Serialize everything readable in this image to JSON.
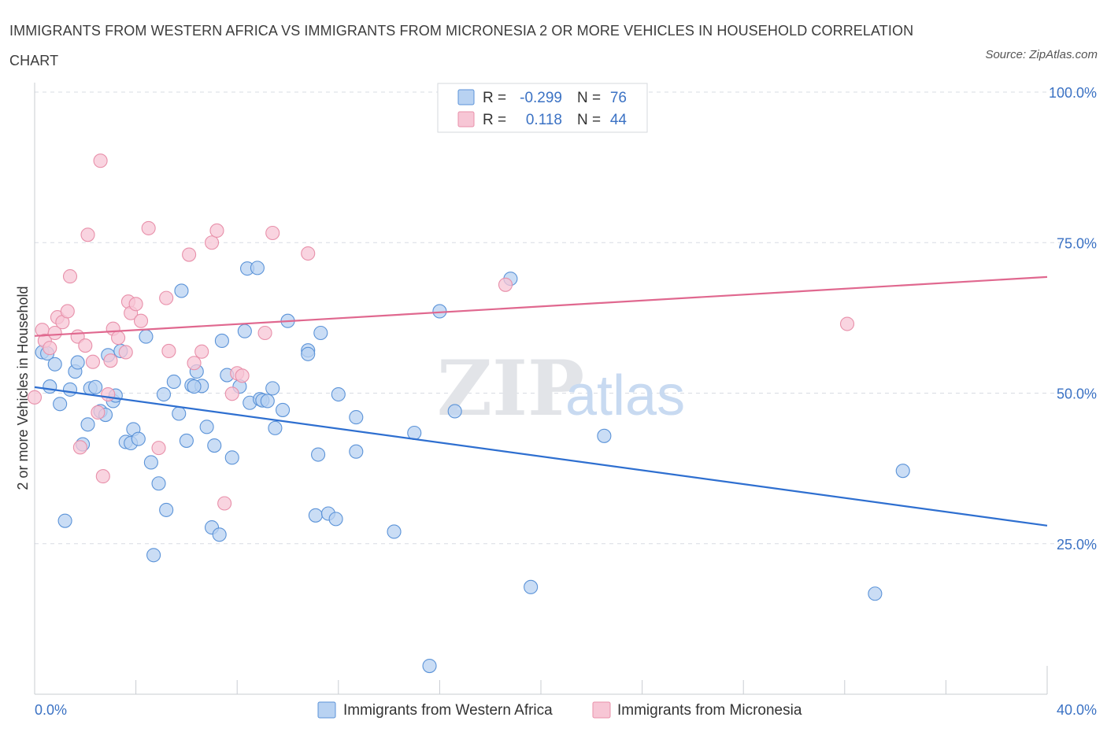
{
  "title": "IMMIGRANTS FROM WESTERN AFRICA VS IMMIGRANTS FROM MICRONESIA 2 OR MORE VEHICLES IN HOUSEHOLD CORRELATION CHART",
  "source": "Source: ZipAtlas.com",
  "watermark": {
    "zip": "ZIP",
    "atlas": "atlas"
  },
  "legend": {
    "r_label": "R =",
    "n_label": "N =",
    "items": [
      {
        "r": "-0.299",
        "n": "76"
      },
      {
        "r": "0.118",
        "n": "44"
      }
    ]
  },
  "colors": {
    "blue_fill": "#b8d2f2",
    "blue_stroke": "#5b93d8",
    "blue_line": "#2e6fd0",
    "pink_fill": "#f7c6d5",
    "pink_stroke": "#e890aa",
    "pink_line": "#e0688f",
    "axis_label": "#3b72c4",
    "grid": "#d8dce3"
  },
  "chart_data": {
    "type": "scatter",
    "title": "IMMIGRANTS FROM WESTERN AFRICA VS IMMIGRANTS FROM MICRONESIA 2 OR MORE VEHICLES IN HOUSEHOLD CORRELATION CHART",
    "xlabel": "",
    "ylabel": "2 or more Vehicles in Household",
    "xlim": [
      0,
      40
    ],
    "ylim": [
      0,
      100
    ],
    "x_tick_labels": [
      "0.0%",
      "40.0%"
    ],
    "y_tick_labels": [
      "100.0%",
      "75.0%",
      "50.0%",
      "25.0%"
    ],
    "y_ticks": [
      100,
      75,
      50,
      25
    ],
    "grid": true,
    "legend_position": "top-center",
    "series": [
      {
        "name": "Immigrants from Western Africa",
        "color": "#5b93d8",
        "trend": [
          [
            0,
            51.0
          ],
          [
            40,
            28.0
          ]
        ],
        "points": [
          [
            0.3,
            56.8
          ],
          [
            0.5,
            56.6
          ],
          [
            0.6,
            51.1
          ],
          [
            0.8,
            54.8
          ],
          [
            1.0,
            48.2
          ],
          [
            1.2,
            28.8
          ],
          [
            1.4,
            50.6
          ],
          [
            1.6,
            53.6
          ],
          [
            1.7,
            55.1
          ],
          [
            1.9,
            41.5
          ],
          [
            2.1,
            44.8
          ],
          [
            2.2,
            50.8
          ],
          [
            2.4,
            51.0
          ],
          [
            2.6,
            47.0
          ],
          [
            2.8,
            46.4
          ],
          [
            2.9,
            56.3
          ],
          [
            3.1,
            48.7
          ],
          [
            3.2,
            49.6
          ],
          [
            3.4,
            57.0
          ],
          [
            3.6,
            41.9
          ],
          [
            3.8,
            41.7
          ],
          [
            3.9,
            44.0
          ],
          [
            4.1,
            42.4
          ],
          [
            4.4,
            59.4
          ],
          [
            4.6,
            38.5
          ],
          [
            4.9,
            35.0
          ],
          [
            5.1,
            49.8
          ],
          [
            5.2,
            30.6
          ],
          [
            5.5,
            51.9
          ],
          [
            5.7,
            46.6
          ],
          [
            5.8,
            67.0
          ],
          [
            6.0,
            42.1
          ],
          [
            6.2,
            51.3
          ],
          [
            6.4,
            53.6
          ],
          [
            6.6,
            51.2
          ],
          [
            6.8,
            44.4
          ],
          [
            7.0,
            27.7
          ],
          [
            7.1,
            41.3
          ],
          [
            7.3,
            26.5
          ],
          [
            7.4,
            58.7
          ],
          [
            7.6,
            53.0
          ],
          [
            7.8,
            39.3
          ],
          [
            8.1,
            51.1
          ],
          [
            8.3,
            60.3
          ],
          [
            8.4,
            70.7
          ],
          [
            8.5,
            48.4
          ],
          [
            8.8,
            70.8
          ],
          [
            8.9,
            49.0
          ],
          [
            9.0,
            48.8
          ],
          [
            9.2,
            48.7
          ],
          [
            9.4,
            50.8
          ],
          [
            9.5,
            44.2
          ],
          [
            9.8,
            47.2
          ],
          [
            10.0,
            62.0
          ],
          [
            10.8,
            57.1
          ],
          [
            10.8,
            56.5
          ],
          [
            11.1,
            29.7
          ],
          [
            11.2,
            39.8
          ],
          [
            11.3,
            60.0
          ],
          [
            11.6,
            30.0
          ],
          [
            11.9,
            29.1
          ],
          [
            12.0,
            49.8
          ],
          [
            12.7,
            40.3
          ],
          [
            12.7,
            46.0
          ],
          [
            14.2,
            27.0
          ],
          [
            15.0,
            43.4
          ],
          [
            6.3,
            51.1
          ],
          [
            4.7,
            23.1
          ],
          [
            15.6,
            4.7
          ],
          [
            16.0,
            63.6
          ],
          [
            16.6,
            47.0
          ],
          [
            18.8,
            69.0
          ],
          [
            19.6,
            17.8
          ],
          [
            22.5,
            42.9
          ],
          [
            34.3,
            37.1
          ],
          [
            33.2,
            16.7
          ]
        ]
      },
      {
        "name": "Immigrants from Micronesia",
        "color": "#e890aa",
        "trend": [
          [
            0,
            59.5
          ],
          [
            40,
            69.3
          ]
        ],
        "points": [
          [
            0.0,
            49.3
          ],
          [
            0.3,
            60.5
          ],
          [
            0.4,
            58.7
          ],
          [
            0.6,
            57.5
          ],
          [
            0.8,
            60.0
          ],
          [
            0.9,
            62.6
          ],
          [
            1.1,
            61.8
          ],
          [
            1.3,
            63.6
          ],
          [
            1.4,
            69.4
          ],
          [
            1.7,
            59.4
          ],
          [
            1.8,
            41.0
          ],
          [
            2.0,
            57.9
          ],
          [
            2.1,
            76.3
          ],
          [
            2.3,
            55.2
          ],
          [
            2.5,
            46.8
          ],
          [
            2.6,
            88.6
          ],
          [
            2.7,
            36.2
          ],
          [
            2.9,
            49.8
          ],
          [
            3.0,
            55.4
          ],
          [
            3.1,
            60.7
          ],
          [
            3.3,
            59.2
          ],
          [
            3.6,
            56.8
          ],
          [
            3.7,
            65.2
          ],
          [
            3.8,
            63.3
          ],
          [
            4.0,
            64.8
          ],
          [
            4.2,
            62.0
          ],
          [
            4.5,
            77.4
          ],
          [
            4.9,
            40.9
          ],
          [
            5.2,
            65.8
          ],
          [
            5.3,
            57.0
          ],
          [
            6.1,
            73.0
          ],
          [
            6.3,
            55.0
          ],
          [
            6.6,
            56.9
          ],
          [
            7.0,
            75.0
          ],
          [
            7.2,
            77.0
          ],
          [
            7.5,
            31.7
          ],
          [
            7.8,
            49.9
          ],
          [
            8.0,
            53.3
          ],
          [
            8.2,
            52.9
          ],
          [
            9.1,
            60.0
          ],
          [
            9.4,
            76.6
          ],
          [
            10.8,
            73.2
          ],
          [
            18.6,
            68.0
          ],
          [
            32.1,
            61.5
          ]
        ]
      }
    ]
  }
}
